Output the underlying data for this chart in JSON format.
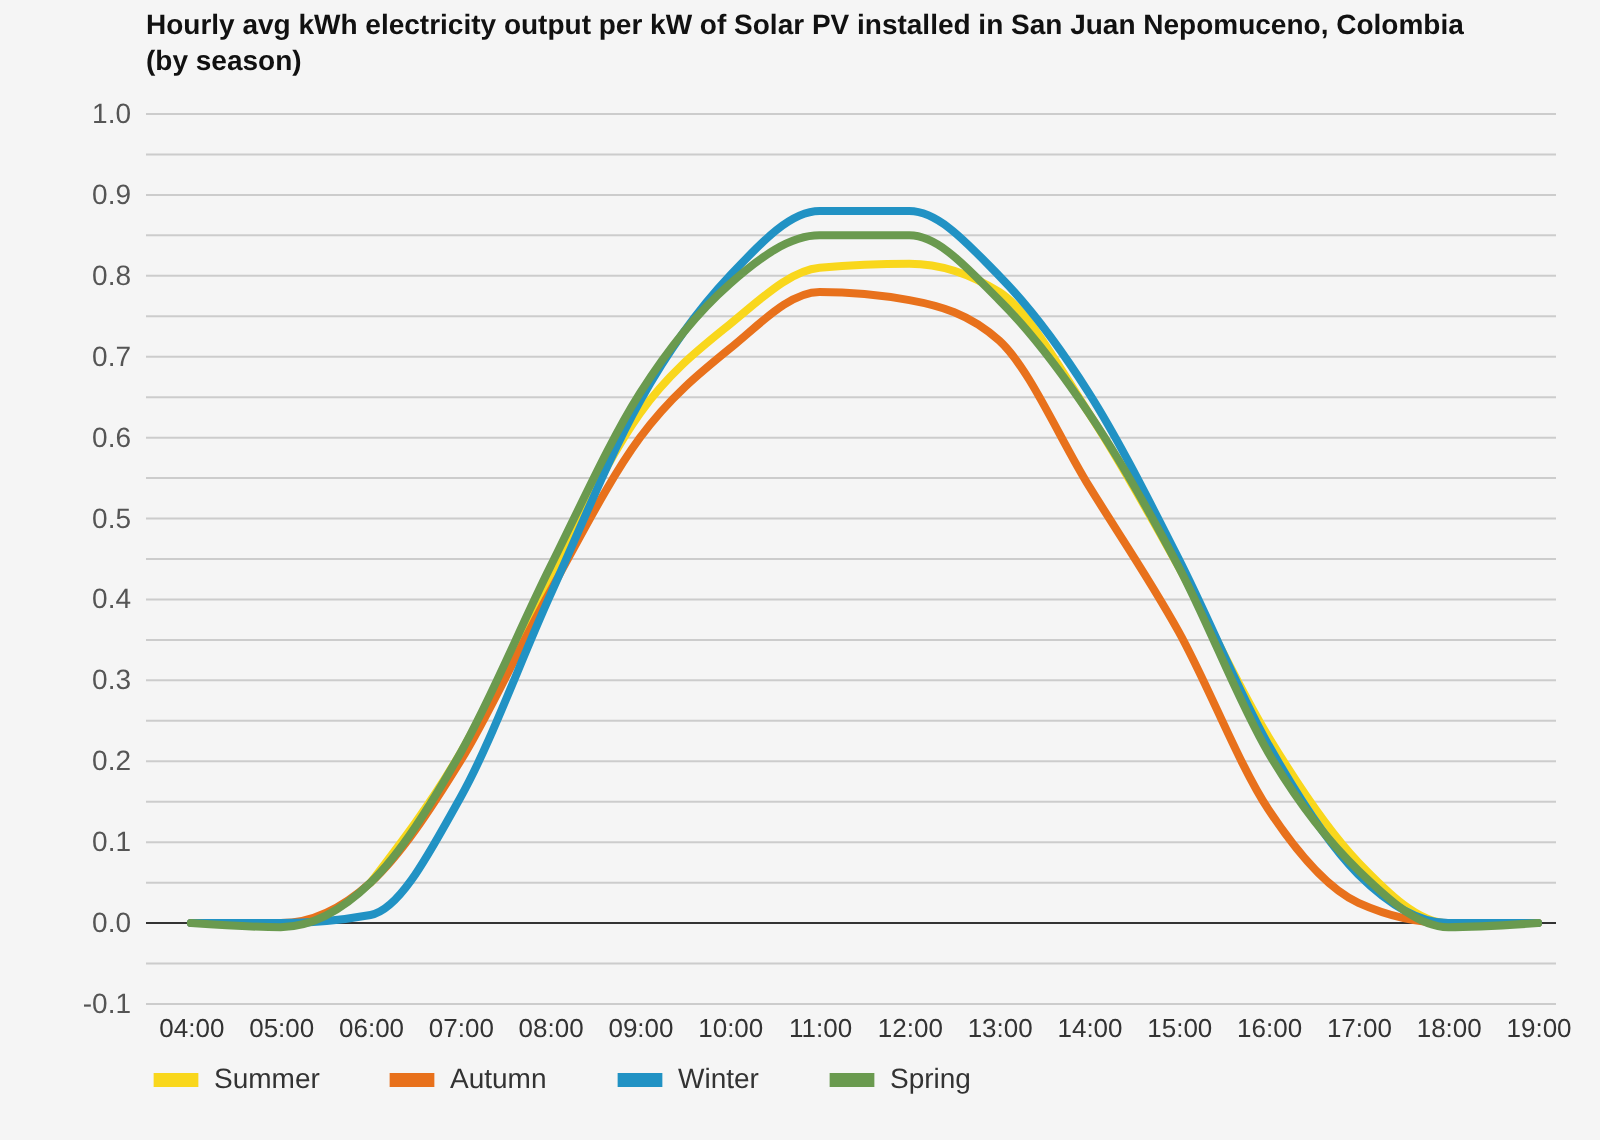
{
  "chart_data": {
    "type": "line",
    "title": "Hourly avg kWh electricity output per kW of Solar PV installed in San Juan Nepomuceno, Colombia (by season)",
    "x": [
      4,
      5,
      6,
      7,
      8,
      9,
      10,
      11,
      12,
      13,
      14,
      15,
      16,
      17,
      18,
      19
    ],
    "xlim": [
      3.5,
      19.2
    ],
    "xticks": [
      {
        "value": 4,
        "label": "04:00"
      },
      {
        "value": 5,
        "label": "05:00"
      },
      {
        "value": 6,
        "label": "06:00"
      },
      {
        "value": 7,
        "label": "07:00"
      },
      {
        "value": 8,
        "label": "08:00"
      },
      {
        "value": 9,
        "label": "09:00"
      },
      {
        "value": 10,
        "label": "10:00"
      },
      {
        "value": 11,
        "label": "11:00"
      },
      {
        "value": 12,
        "label": "12:00"
      },
      {
        "value": 13,
        "label": "13:00"
      },
      {
        "value": 14,
        "label": "14:00"
      },
      {
        "value": 15,
        "label": "15:00"
      },
      {
        "value": 16,
        "label": "16:00"
      },
      {
        "value": 17,
        "label": "17:00"
      },
      {
        "value": 18,
        "label": "18:00"
      },
      {
        "value": 19,
        "label": "19:00"
      }
    ],
    "ylim": [
      -0.1,
      1.0
    ],
    "yticks": [
      -0.1,
      {
        "value": -0.05,
        "label": null
      },
      {
        "value": 0,
        "label": "0.0"
      },
      {
        "value": 0.05,
        "label": null
      },
      0.1,
      {
        "value": 0.15,
        "label": null
      },
      0.2,
      {
        "value": 0.25,
        "label": null
      },
      0.3,
      {
        "value": 0.35,
        "label": null
      },
      0.4,
      {
        "value": 0.45,
        "label": null
      },
      0.5,
      {
        "value": 0.55,
        "label": null
      },
      0.6,
      {
        "value": 0.65,
        "label": null
      },
      0.7,
      {
        "value": 0.75,
        "label": null
      },
      0.8,
      {
        "value": 0.85,
        "label": null
      },
      0.9,
      {
        "value": 0.95,
        "label": null
      },
      {
        "value": 1.0,
        "label": "1.0"
      }
    ],
    "grid": "y",
    "legend": "bottom",
    "marker": "none",
    "line_style": "solid",
    "ref_lines": [
      {
        "axis": "y",
        "value": 0,
        "color": "#333333"
      }
    ],
    "series": [
      {
        "name": "Summer",
        "color": "#f9d71c",
        "values": [
          null,
          null,
          0.05,
          0.21,
          0.43,
          0.63,
          0.74,
          0.81,
          0.815,
          0.78,
          0.63,
          0.44,
          0.23,
          0.075,
          0,
          0
        ]
      },
      {
        "name": "Autumn",
        "color": "#e8711c",
        "values": [
          0,
          0,
          0.05,
          0.2,
          0.41,
          0.6,
          0.71,
          0.78,
          0.77,
          0.72,
          0.54,
          0.36,
          0.14,
          0.025,
          0,
          0
        ]
      },
      {
        "name": "Winter",
        "color": "#2192c4",
        "values": [
          0,
          0,
          0.01,
          0.155,
          0.405,
          0.645,
          0.8,
          0.88,
          0.88,
          0.8,
          0.655,
          0.45,
          0.22,
          0.06,
          0,
          0
        ]
      },
      {
        "name": "Spring",
        "color": "#6a9a4f",
        "values": [
          0,
          -0.005,
          0.05,
          0.21,
          0.44,
          0.655,
          0.79,
          0.85,
          0.85,
          0.77,
          0.63,
          0.44,
          0.21,
          0.065,
          -0.005,
          0
        ]
      }
    ]
  }
}
